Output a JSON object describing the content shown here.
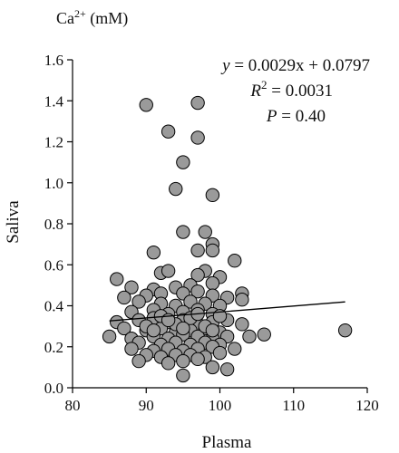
{
  "chart_data": {
    "type": "scatter",
    "title": "",
    "unit_label": {
      "base": "Ca",
      "sup": "2+",
      "suffix": " (mM)"
    },
    "xlabel": "Plasma",
    "ylabel": "Saliva",
    "xlim": [
      80,
      120
    ],
    "ylim": [
      0,
      1.6
    ],
    "xticks": [
      "80",
      "90",
      "100",
      "110",
      "120"
    ],
    "yticks": [
      "0.0",
      "0.2",
      "0.4",
      "0.6",
      "0.8",
      "1.0",
      "1.2",
      "1.4",
      "1.6"
    ],
    "grid": false,
    "marker_fill": "#9a9a9a",
    "marker_edge": "#000000",
    "annotation": {
      "equation": {
        "y": "y",
        "rhs": " = 0.0029x + 0.0797"
      },
      "r2": {
        "r": "R",
        "sup": "2",
        "rhs": " = 0.0031"
      },
      "p": {
        "p": "P",
        "rhs": " = 0.40"
      }
    },
    "regression": {
      "slope": 0.0029,
      "intercept": 0.0797,
      "x_range": [
        85,
        117
      ]
    },
    "points": [
      [
        90,
        1.38
      ],
      [
        97,
        1.39
      ],
      [
        93,
        1.25
      ],
      [
        97,
        1.22
      ],
      [
        95,
        1.1
      ],
      [
        94,
        0.97
      ],
      [
        99,
        0.94
      ],
      [
        95,
        0.76
      ],
      [
        98,
        0.76
      ],
      [
        99,
        0.7
      ],
      [
        99,
        0.67
      ],
      [
        97,
        0.67
      ],
      [
        91,
        0.66
      ],
      [
        102,
        0.62
      ],
      [
        86,
        0.53
      ],
      [
        98,
        0.57
      ],
      [
        92,
        0.56
      ],
      [
        93,
        0.57
      ],
      [
        97,
        0.55
      ],
      [
        100,
        0.54
      ],
      [
        88,
        0.49
      ],
      [
        91,
        0.48
      ],
      [
        94,
        0.49
      ],
      [
        96,
        0.5
      ],
      [
        99,
        0.51
      ],
      [
        87,
        0.44
      ],
      [
        90,
        0.45
      ],
      [
        92,
        0.46
      ],
      [
        95,
        0.46
      ],
      [
        97,
        0.47
      ],
      [
        99,
        0.45
      ],
      [
        101,
        0.44
      ],
      [
        103,
        0.46
      ],
      [
        103,
        0.43
      ],
      [
        89,
        0.42
      ],
      [
        92,
        0.41
      ],
      [
        94,
        0.4
      ],
      [
        96,
        0.42
      ],
      [
        98,
        0.41
      ],
      [
        100,
        0.4
      ],
      [
        88,
        0.37
      ],
      [
        91,
        0.38
      ],
      [
        93,
        0.36
      ],
      [
        95,
        0.37
      ],
      [
        97,
        0.38
      ],
      [
        99,
        0.36
      ],
      [
        86,
        0.32
      ],
      [
        89,
        0.33
      ],
      [
        91,
        0.34
      ],
      [
        93,
        0.32
      ],
      [
        95,
        0.33
      ],
      [
        97,
        0.31
      ],
      [
        99,
        0.32
      ],
      [
        101,
        0.33
      ],
      [
        103,
        0.31
      ],
      [
        87,
        0.29
      ],
      [
        90,
        0.28
      ],
      [
        92,
        0.29
      ],
      [
        94,
        0.27
      ],
      [
        96,
        0.28
      ],
      [
        98,
        0.29
      ],
      [
        100,
        0.27
      ],
      [
        85,
        0.25
      ],
      [
        88,
        0.24
      ],
      [
        91,
        0.25
      ],
      [
        93,
        0.24
      ],
      [
        95,
        0.26
      ],
      [
        97,
        0.25
      ],
      [
        99,
        0.24
      ],
      [
        101,
        0.25
      ],
      [
        104,
        0.25
      ],
      [
        106,
        0.26
      ],
      [
        117,
        0.28
      ],
      [
        89,
        0.22
      ],
      [
        92,
        0.21
      ],
      [
        94,
        0.22
      ],
      [
        96,
        0.21
      ],
      [
        98,
        0.22
      ],
      [
        100,
        0.21
      ],
      [
        88,
        0.19
      ],
      [
        91,
        0.18
      ],
      [
        93,
        0.19
      ],
      [
        95,
        0.18
      ],
      [
        97,
        0.19
      ],
      [
        99,
        0.2
      ],
      [
        102,
        0.19
      ],
      [
        90,
        0.16
      ],
      [
        92,
        0.15
      ],
      [
        94,
        0.16
      ],
      [
        96,
        0.16
      ],
      [
        98,
        0.15
      ],
      [
        100,
        0.17
      ],
      [
        89,
        0.13
      ],
      [
        93,
        0.12
      ],
      [
        95,
        0.13
      ],
      [
        97,
        0.14
      ],
      [
        99,
        0.1
      ],
      [
        101,
        0.09
      ],
      [
        95,
        0.06
      ],
      [
        90,
        0.3
      ],
      [
        92,
        0.35
      ],
      [
        94,
        0.31
      ],
      [
        96,
        0.34
      ],
      [
        98,
        0.3
      ],
      [
        100,
        0.35
      ],
      [
        91,
        0.28
      ],
      [
        93,
        0.33
      ],
      [
        95,
        0.29
      ],
      [
        97,
        0.36
      ],
      [
        99,
        0.28
      ]
    ]
  }
}
